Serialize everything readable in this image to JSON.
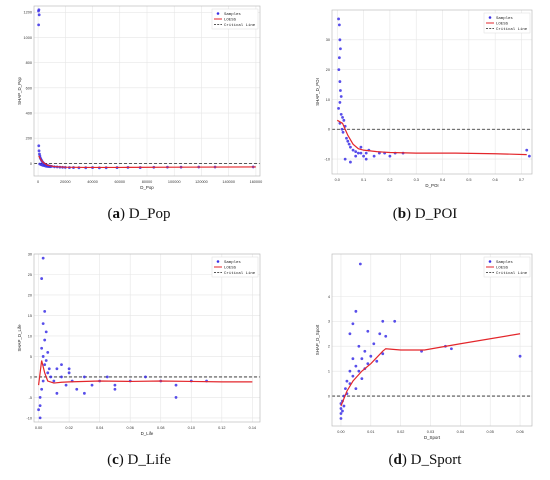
{
  "colors": {
    "samples": "#3b2fe6",
    "loess": "#e3262b",
    "critical": "#222222",
    "grid": "#e6e6e6",
    "frame": "#bdbdbd"
  },
  "legend": {
    "samples": "Samples",
    "loess": "LOESS",
    "critical": "Critical Line"
  },
  "chart_data": [
    {
      "type": "scatter",
      "panel_letter": "a",
      "caption": "D_Pop",
      "xlabel": "D_Pop",
      "ylabel": "SHAP_D_Pop",
      "xlim": [
        -3000,
        163000
      ],
      "ylim": [
        -100,
        1250
      ],
      "xticks": [
        0,
        20000,
        40000,
        60000,
        80000,
        100000,
        120000,
        140000,
        160000
      ],
      "xtick_labels": [
        "0",
        "20000",
        "40000",
        "60000",
        "80000",
        "100000",
        "120000",
        "140000",
        "160000"
      ],
      "yticks": [
        0,
        200,
        400,
        600,
        800,
        1000,
        1200
      ],
      "ytick_labels": [
        "0",
        "200",
        "400",
        "600",
        "800",
        "1000",
        "1200"
      ],
      "critical": 0,
      "legend_position": "top-right",
      "loess": {
        "x": [
          500,
          2000,
          4000,
          7000,
          12000,
          20000,
          35000,
          60000,
          100000,
          160000
        ],
        "y": [
          60,
          30,
          5,
          -15,
          -25,
          -30,
          -32,
          -32,
          -30,
          -28
        ]
      },
      "samples": [
        [
          300,
          1210
        ],
        [
          400,
          1100
        ],
        [
          600,
          1220
        ],
        [
          800,
          1180
        ],
        [
          500,
          140
        ],
        [
          700,
          100
        ],
        [
          1000,
          75
        ],
        [
          1300,
          60
        ],
        [
          1600,
          45
        ],
        [
          2000,
          35
        ],
        [
          2500,
          25
        ],
        [
          3000,
          15
        ],
        [
          3500,
          8
        ],
        [
          4000,
          2
        ],
        [
          4500,
          -3
        ],
        [
          5000,
          -8
        ],
        [
          6000,
          -12
        ],
        [
          7000,
          -16
        ],
        [
          8000,
          -20
        ],
        [
          9000,
          -22
        ],
        [
          10000,
          -24
        ],
        [
          12000,
          -27
        ],
        [
          14000,
          -28
        ],
        [
          16000,
          -30
        ],
        [
          18000,
          -31
        ],
        [
          20000,
          -32
        ],
        [
          23000,
          -33
        ],
        [
          26000,
          -33
        ],
        [
          30000,
          -34
        ],
        [
          35000,
          -34
        ],
        [
          40000,
          -33
        ],
        [
          45000,
          -35
        ],
        [
          50000,
          -34
        ],
        [
          58000,
          -33
        ],
        [
          66000,
          -32
        ],
        [
          75000,
          -33
        ],
        [
          85000,
          -31
        ],
        [
          95000,
          -30
        ],
        [
          105000,
          -30
        ],
        [
          118000,
          -29
        ],
        [
          130000,
          -29
        ],
        [
          158000,
          -28
        ],
        [
          1200,
          -5
        ],
        [
          2200,
          -10
        ],
        [
          3300,
          -15
        ],
        [
          4400,
          -18
        ],
        [
          5500,
          -22
        ],
        [
          6600,
          -24
        ],
        [
          7700,
          -25
        ],
        [
          8800,
          -26
        ]
      ]
    },
    {
      "type": "scatter",
      "panel_letter": "b",
      "caption": "D_POI",
      "xlabel": "D_POI",
      "ylabel": "SHAP_D_POI",
      "xlim": [
        -0.02,
        0.74
      ],
      "ylim": [
        -15,
        40
      ],
      "xticks": [
        0,
        0.1,
        0.2,
        0.3,
        0.4,
        0.5,
        0.6,
        0.7
      ],
      "xtick_labels": [
        "0.0",
        "0.1",
        "0.2",
        "0.3",
        "0.4",
        "0.5",
        "0.6",
        "0.7"
      ],
      "yticks": [
        -10,
        0,
        10,
        20,
        30
      ],
      "ytick_labels": [
        "-10",
        "0",
        "10",
        "20",
        "30"
      ],
      "critical": 0,
      "legend_position": "top-right",
      "loess": {
        "x": [
          0.0,
          0.02,
          0.04,
          0.06,
          0.08,
          0.1,
          0.15,
          0.2,
          0.3,
          0.45,
          0.6,
          0.72
        ],
        "y": [
          3,
          2,
          -2,
          -5,
          -6.5,
          -7,
          -7.5,
          -7.8,
          -8,
          -8,
          -8.2,
          -8.5
        ]
      },
      "samples": [
        [
          0.005,
          37
        ],
        [
          0.008,
          35
        ],
        [
          0.01,
          30
        ],
        [
          0.012,
          27
        ],
        [
          0.008,
          24
        ],
        [
          0.006,
          20
        ],
        [
          0.01,
          16
        ],
        [
          0.012,
          13
        ],
        [
          0.015,
          11
        ],
        [
          0.01,
          9
        ],
        [
          0.005,
          7
        ],
        [
          0.015,
          5
        ],
        [
          0.02,
          4
        ],
        [
          0.01,
          2
        ],
        [
          0.018,
          0
        ],
        [
          0.022,
          -1
        ],
        [
          0.025,
          3
        ],
        [
          0.03,
          1
        ],
        [
          0.035,
          -3
        ],
        [
          0.04,
          -4
        ],
        [
          0.045,
          -5
        ],
        [
          0.05,
          -6
        ],
        [
          0.06,
          -7
        ],
        [
          0.07,
          -7.5
        ],
        [
          0.08,
          -8
        ],
        [
          0.09,
          -8
        ],
        [
          0.1,
          -9
        ],
        [
          0.11,
          -8
        ],
        [
          0.12,
          -7
        ],
        [
          0.14,
          -9
        ],
        [
          0.16,
          -8
        ],
        [
          0.18,
          -8
        ],
        [
          0.2,
          -9
        ],
        [
          0.22,
          -8
        ],
        [
          0.25,
          -8
        ],
        [
          0.03,
          -10
        ],
        [
          0.05,
          -11
        ],
        [
          0.07,
          -9
        ],
        [
          0.09,
          -6
        ],
        [
          0.11,
          -10
        ],
        [
          0.72,
          -7
        ],
        [
          0.73,
          -9
        ]
      ]
    },
    {
      "type": "scatter",
      "panel_letter": "c",
      "caption": "D_Life",
      "xlabel": "D_Life",
      "ylabel": "SHAP_D_Life",
      "xlim": [
        -0.003,
        0.145
      ],
      "ylim": [
        -11,
        30
      ],
      "xticks": [
        0,
        0.02,
        0.04,
        0.06,
        0.08,
        0.1,
        0.12,
        0.14
      ],
      "xtick_labels": [
        "0.00",
        "0.02",
        "0.04",
        "0.06",
        "0.08",
        "0.10",
        "0.12",
        "0.14"
      ],
      "yticks": [
        -10,
        -5,
        0,
        5,
        10,
        15,
        20,
        25,
        30
      ],
      "ytick_labels": [
        "-10",
        "-5",
        "0",
        "5",
        "10",
        "15",
        "20",
        "25",
        "30"
      ],
      "critical": 0,
      "legend_position": "top-right",
      "loess": {
        "x": [
          0.0,
          0.002,
          0.004,
          0.006,
          0.01,
          0.015,
          0.02,
          0.04,
          0.06,
          0.08,
          0.1,
          0.12,
          0.14
        ],
        "y": [
          -2,
          4,
          1,
          -1,
          -1.5,
          -1.3,
          -1.2,
          -1,
          -1.1,
          -1,
          -1.1,
          -1.2,
          -1.2
        ]
      },
      "samples": [
        [
          0.003,
          29
        ],
        [
          0.002,
          24
        ],
        [
          0.004,
          16
        ],
        [
          0.003,
          13
        ],
        [
          0.005,
          11
        ],
        [
          0.004,
          9
        ],
        [
          0.002,
          7
        ],
        [
          0.006,
          6
        ],
        [
          0.003,
          5
        ],
        [
          0.005,
          4
        ],
        [
          0.004,
          3
        ],
        [
          0.007,
          2
        ],
        [
          0.006,
          1
        ],
        [
          0.008,
          0
        ],
        [
          0.003,
          -1
        ],
        [
          0.002,
          -3
        ],
        [
          0.001,
          -5
        ],
        [
          0.001,
          -7
        ],
        [
          0.0,
          -8
        ],
        [
          0.001,
          -10
        ],
        [
          0.01,
          -1
        ],
        [
          0.012,
          2
        ],
        [
          0.015,
          0
        ],
        [
          0.018,
          -2
        ],
        [
          0.02,
          1
        ],
        [
          0.022,
          -1
        ],
        [
          0.025,
          -3
        ],
        [
          0.03,
          0
        ],
        [
          0.035,
          -2
        ],
        [
          0.04,
          -1
        ],
        [
          0.045,
          0
        ],
        [
          0.05,
          -2
        ],
        [
          0.06,
          -1
        ],
        [
          0.07,
          0
        ],
        [
          0.08,
          -1
        ],
        [
          0.09,
          -2
        ],
        [
          0.1,
          -1
        ],
        [
          0.11,
          -1
        ],
        [
          0.015,
          3
        ],
        [
          0.02,
          2
        ],
        [
          0.03,
          -4
        ],
        [
          0.05,
          -3
        ],
        [
          0.09,
          -5
        ],
        [
          0.012,
          -4
        ]
      ]
    },
    {
      "type": "scatter",
      "panel_letter": "d",
      "caption": "D_Sport",
      "xlabel": "D_Sport",
      "ylabel": "SHAP_D_Sport",
      "xlim": [
        -0.003,
        0.064
      ],
      "ylim": [
        -1.2,
        5.7
      ],
      "xticks": [
        0,
        0.01,
        0.02,
        0.03,
        0.04,
        0.05,
        0.06
      ],
      "xtick_labels": [
        "0.00",
        "0.01",
        "0.02",
        "0.03",
        "0.04",
        "0.05",
        "0.06"
      ],
      "yticks": [
        0,
        1,
        2,
        3,
        4
      ],
      "ytick_labels": [
        "0",
        "1",
        "2",
        "3",
        "4"
      ],
      "critical": 0,
      "legend_position": "top-right",
      "loess": {
        "x": [
          0.0,
          0.002,
          0.004,
          0.007,
          0.01,
          0.014,
          0.015,
          0.02,
          0.028,
          0.04,
          0.06
        ],
        "y": [
          -0.4,
          0.2,
          0.6,
          1.0,
          1.3,
          1.8,
          1.9,
          1.85,
          1.85,
          2.1,
          2.5
        ]
      },
      "samples": [
        [
          0.0,
          -0.3
        ],
        [
          0.0,
          -0.5
        ],
        [
          0.0,
          -0.7
        ],
        [
          0.0,
          -0.9
        ],
        [
          0.0005,
          -0.2
        ],
        [
          0.0005,
          -0.6
        ],
        [
          0.001,
          0.0
        ],
        [
          0.001,
          -0.4
        ],
        [
          0.0015,
          0.3
        ],
        [
          0.002,
          0.6
        ],
        [
          0.002,
          0.1
        ],
        [
          0.003,
          0.5
        ],
        [
          0.003,
          1.0
        ],
        [
          0.003,
          2.5
        ],
        [
          0.004,
          0.8
        ],
        [
          0.004,
          1.5
        ],
        [
          0.004,
          2.9
        ],
        [
          0.005,
          1.2
        ],
        [
          0.005,
          0.3
        ],
        [
          0.005,
          3.4
        ],
        [
          0.006,
          1.0
        ],
        [
          0.006,
          2.0
        ],
        [
          0.0065,
          5.3
        ],
        [
          0.007,
          1.5
        ],
        [
          0.007,
          0.7
        ],
        [
          0.008,
          1.8
        ],
        [
          0.008,
          1.1
        ],
        [
          0.009,
          1.3
        ],
        [
          0.009,
          2.6
        ],
        [
          0.01,
          1.6
        ],
        [
          0.011,
          2.1
        ],
        [
          0.012,
          1.4
        ],
        [
          0.013,
          2.5
        ],
        [
          0.014,
          3.0
        ],
        [
          0.014,
          1.7
        ],
        [
          0.015,
          2.4
        ],
        [
          0.018,
          3.0
        ],
        [
          0.027,
          1.8
        ],
        [
          0.035,
          2.0
        ],
        [
          0.037,
          1.9
        ],
        [
          0.06,
          1.6
        ]
      ]
    }
  ]
}
